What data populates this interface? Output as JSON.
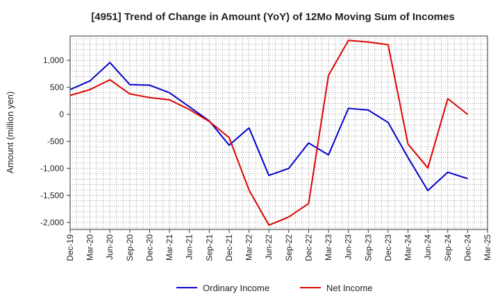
{
  "chart_data": {
    "type": "line",
    "title": "[4951]  Trend of Change in Amount (YoY) of 12Mo Moving Sum of Incomes",
    "xlabel": "",
    "ylabel": "Amount (million yen)",
    "ylim": [
      -2130,
      1450
    ],
    "y_ticks": [
      1000,
      500,
      0,
      -500,
      -1000,
      -1500,
      -2000
    ],
    "y_tick_labels": [
      "1,000",
      "500",
      "0",
      "-500",
      "-1,000",
      "-1,500",
      "-2,000"
    ],
    "categories": [
      "Dec-19",
      "Mar-20",
      "Jun-20",
      "Sep-20",
      "Dec-20",
      "Mar-21",
      "Jun-21",
      "Sep-21",
      "Dec-21",
      "Mar-22",
      "Jun-22",
      "Sep-22",
      "Dec-22",
      "Mar-23",
      "Jun-23",
      "Sep-23",
      "Dec-23",
      "Mar-24",
      "Jun-24",
      "Sep-24",
      "Dec-24",
      "Mar-25"
    ],
    "grid": true,
    "legend_position": "bottom",
    "series": [
      {
        "name": "Ordinary Income",
        "color": "#0000cc",
        "values": [
          460,
          620,
          960,
          550,
          540,
          400,
          140,
          -120,
          -570,
          -250,
          -1130,
          -1000,
          -530,
          -750,
          110,
          80,
          -150,
          -800,
          -1410,
          -1070,
          -1190,
          null
        ]
      },
      {
        "name": "Net Income",
        "color": "#dd0000",
        "values": [
          350,
          460,
          640,
          380,
          310,
          270,
          90,
          -130,
          -430,
          -1400,
          -2050,
          -1900,
          -1650,
          720,
          1370,
          1340,
          1290,
          -550,
          -990,
          290,
          0,
          null
        ]
      }
    ]
  }
}
